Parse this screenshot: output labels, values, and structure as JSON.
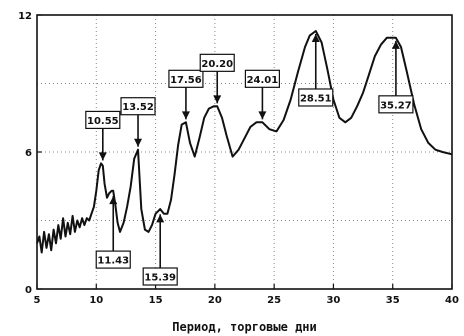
{
  "chart_data": {
    "type": "line",
    "title": "",
    "xlabel": "Период, торговые дни",
    "ylabel": "",
    "xlim": [
      5,
      40
    ],
    "ylim": [
      0,
      12
    ],
    "x_ticks": [
      5,
      10,
      15,
      20,
      25,
      30,
      35,
      40
    ],
    "y_ticks": [
      0,
      6,
      12
    ],
    "grid": "dotted",
    "series": [
      {
        "x": [
          5.0,
          5.2,
          5.4,
          5.6,
          5.8,
          6.0,
          6.2,
          6.4,
          6.6,
          6.8,
          7.0,
          7.2,
          7.4,
          7.6,
          7.8,
          8.0,
          8.2,
          8.4,
          8.6,
          8.8,
          9.0,
          9.2,
          9.4,
          9.6,
          9.8,
          10.0,
          10.2,
          10.4,
          10.55,
          10.7,
          10.9,
          11.1,
          11.3,
          11.43,
          11.6,
          11.8,
          12.0,
          12.3,
          12.6,
          12.9,
          13.2,
          13.52,
          13.8,
          14.1,
          14.4,
          14.7,
          15.0,
          15.39,
          15.7,
          16.0,
          16.3,
          16.6,
          16.9,
          17.2,
          17.56,
          17.9,
          18.3,
          18.7,
          19.1,
          19.5,
          19.9,
          20.2,
          20.6,
          21.0,
          21.5,
          22.0,
          22.5,
          23.0,
          23.5,
          24.01,
          24.6,
          25.2,
          25.8,
          26.4,
          27.0,
          27.6,
          28.0,
          28.51,
          29.0,
          29.5,
          30.0,
          30.5,
          31.0,
          31.5,
          32.0,
          32.5,
          33.0,
          33.5,
          34.0,
          34.5,
          35.0,
          35.27,
          35.7,
          36.2,
          36.8,
          37.4,
          38.0,
          38.6,
          39.2,
          40.0
        ],
        "values": [
          2.0,
          2.3,
          1.6,
          2.5,
          1.8,
          2.4,
          1.7,
          2.6,
          2.0,
          2.8,
          2.2,
          3.1,
          2.3,
          2.9,
          2.4,
          3.2,
          2.5,
          3.0,
          2.7,
          3.1,
          2.8,
          3.1,
          3.0,
          3.3,
          3.6,
          4.3,
          5.2,
          5.5,
          5.4,
          4.6,
          4.0,
          4.2,
          4.3,
          4.3,
          3.7,
          2.9,
          2.5,
          2.9,
          3.6,
          4.5,
          5.7,
          6.1,
          3.5,
          2.6,
          2.5,
          2.8,
          3.3,
          3.5,
          3.3,
          3.3,
          3.9,
          5.0,
          6.3,
          7.2,
          7.3,
          6.4,
          5.8,
          6.6,
          7.5,
          7.9,
          8.0,
          8.0,
          7.5,
          6.7,
          5.8,
          6.1,
          6.6,
          7.1,
          7.3,
          7.3,
          7.0,
          6.9,
          7.4,
          8.3,
          9.5,
          10.6,
          11.1,
          11.3,
          10.8,
          9.6,
          8.3,
          7.5,
          7.3,
          7.5,
          8.0,
          8.6,
          9.4,
          10.2,
          10.7,
          11.0,
          11.0,
          11.0,
          10.6,
          9.5,
          8.1,
          7.0,
          6.4,
          6.1,
          6.0,
          5.9
        ]
      }
    ],
    "annotations": [
      {
        "label": "10.55",
        "x": 10.55,
        "y": 5.5,
        "position": "above"
      },
      {
        "label": "11.43",
        "x": 11.43,
        "y": 4.2,
        "position": "below"
      },
      {
        "label": "13.52",
        "x": 13.52,
        "y": 6.1,
        "position": "above"
      },
      {
        "label": "15.39",
        "x": 15.39,
        "y": 3.4,
        "position": "below"
      },
      {
        "label": "17.56",
        "x": 17.56,
        "y": 7.3,
        "position": "above"
      },
      {
        "label": "20.20",
        "x": 20.2,
        "y": 8.0,
        "position": "above"
      },
      {
        "label": "24.01",
        "x": 24.01,
        "y": 7.3,
        "position": "above"
      },
      {
        "label": "28.51",
        "x": 28.51,
        "y": 11.3,
        "position": "below"
      },
      {
        "label": "35.27",
        "x": 35.27,
        "y": 11.0,
        "position": "below"
      }
    ]
  },
  "colors": {
    "line": "#111111",
    "axis": "#111111",
    "grid": "#888888",
    "box_fill": "#ffffff",
    "background": "#ffffff"
  }
}
